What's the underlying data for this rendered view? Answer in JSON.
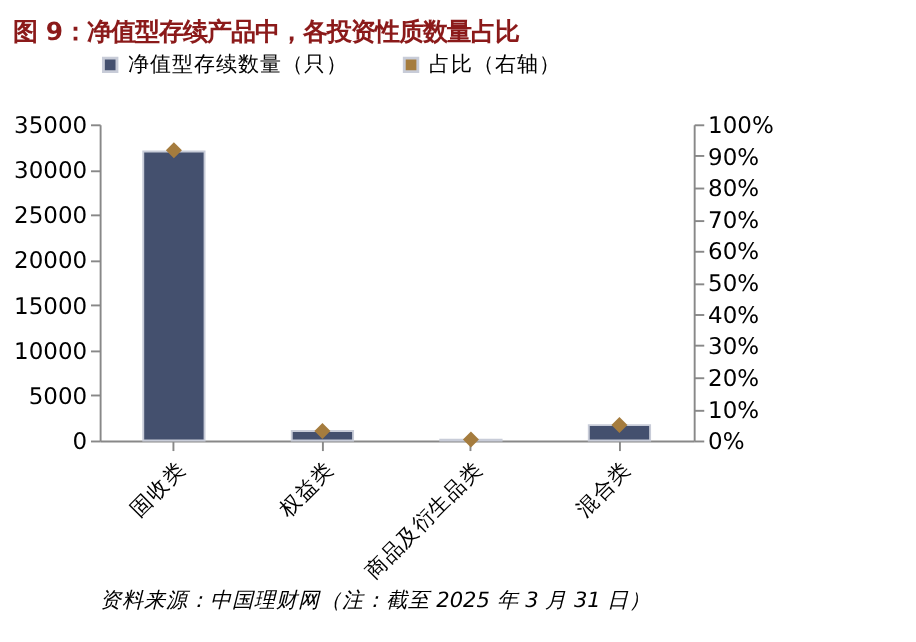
{
  "chart_data": {
    "type": "bar",
    "title": "图 9：净值型存续产品中，各投资性质数量占比",
    "categories": [
      "固收类",
      "权益类",
      "商品及衍生品类",
      "混合类"
    ],
    "series": [
      {
        "name": "净值型存续数量（只）",
        "color": "#44506e",
        "values": [
          32000,
          1050,
          100,
          1700
        ]
      },
      {
        "name": "占比（右轴）",
        "type": "scatter",
        "axis": "y2",
        "color": "#a57c3e",
        "values": [
          91.8,
          3.0,
          0.3,
          4.9
        ]
      }
    ],
    "ylim": [
      0,
      35000
    ],
    "yticks": [
      0,
      5000,
      10000,
      15000,
      20000,
      25000,
      30000,
      35000
    ],
    "y2lim": [
      0,
      100
    ],
    "y2ticks": [
      {
        "value": 0,
        "label": "0%"
      },
      {
        "value": 10,
        "label": "10%"
      },
      {
        "value": 20,
        "label": "20%"
      },
      {
        "value": 30,
        "label": "30%"
      },
      {
        "value": 40,
        "label": "40%"
      },
      {
        "value": 50,
        "label": "50%"
      },
      {
        "value": 60,
        "label": "60%"
      },
      {
        "value": 70,
        "label": "70%"
      },
      {
        "value": 80,
        "label": "80%"
      },
      {
        "value": 90,
        "label": "90%"
      },
      {
        "value": 100,
        "label": "100%"
      }
    ],
    "marker": "diamond",
    "legend": "top",
    "grid": false,
    "annotations": [
      "资料来源：中国理财网（注：截至 2025 年 3 月 31 日）"
    ]
  }
}
